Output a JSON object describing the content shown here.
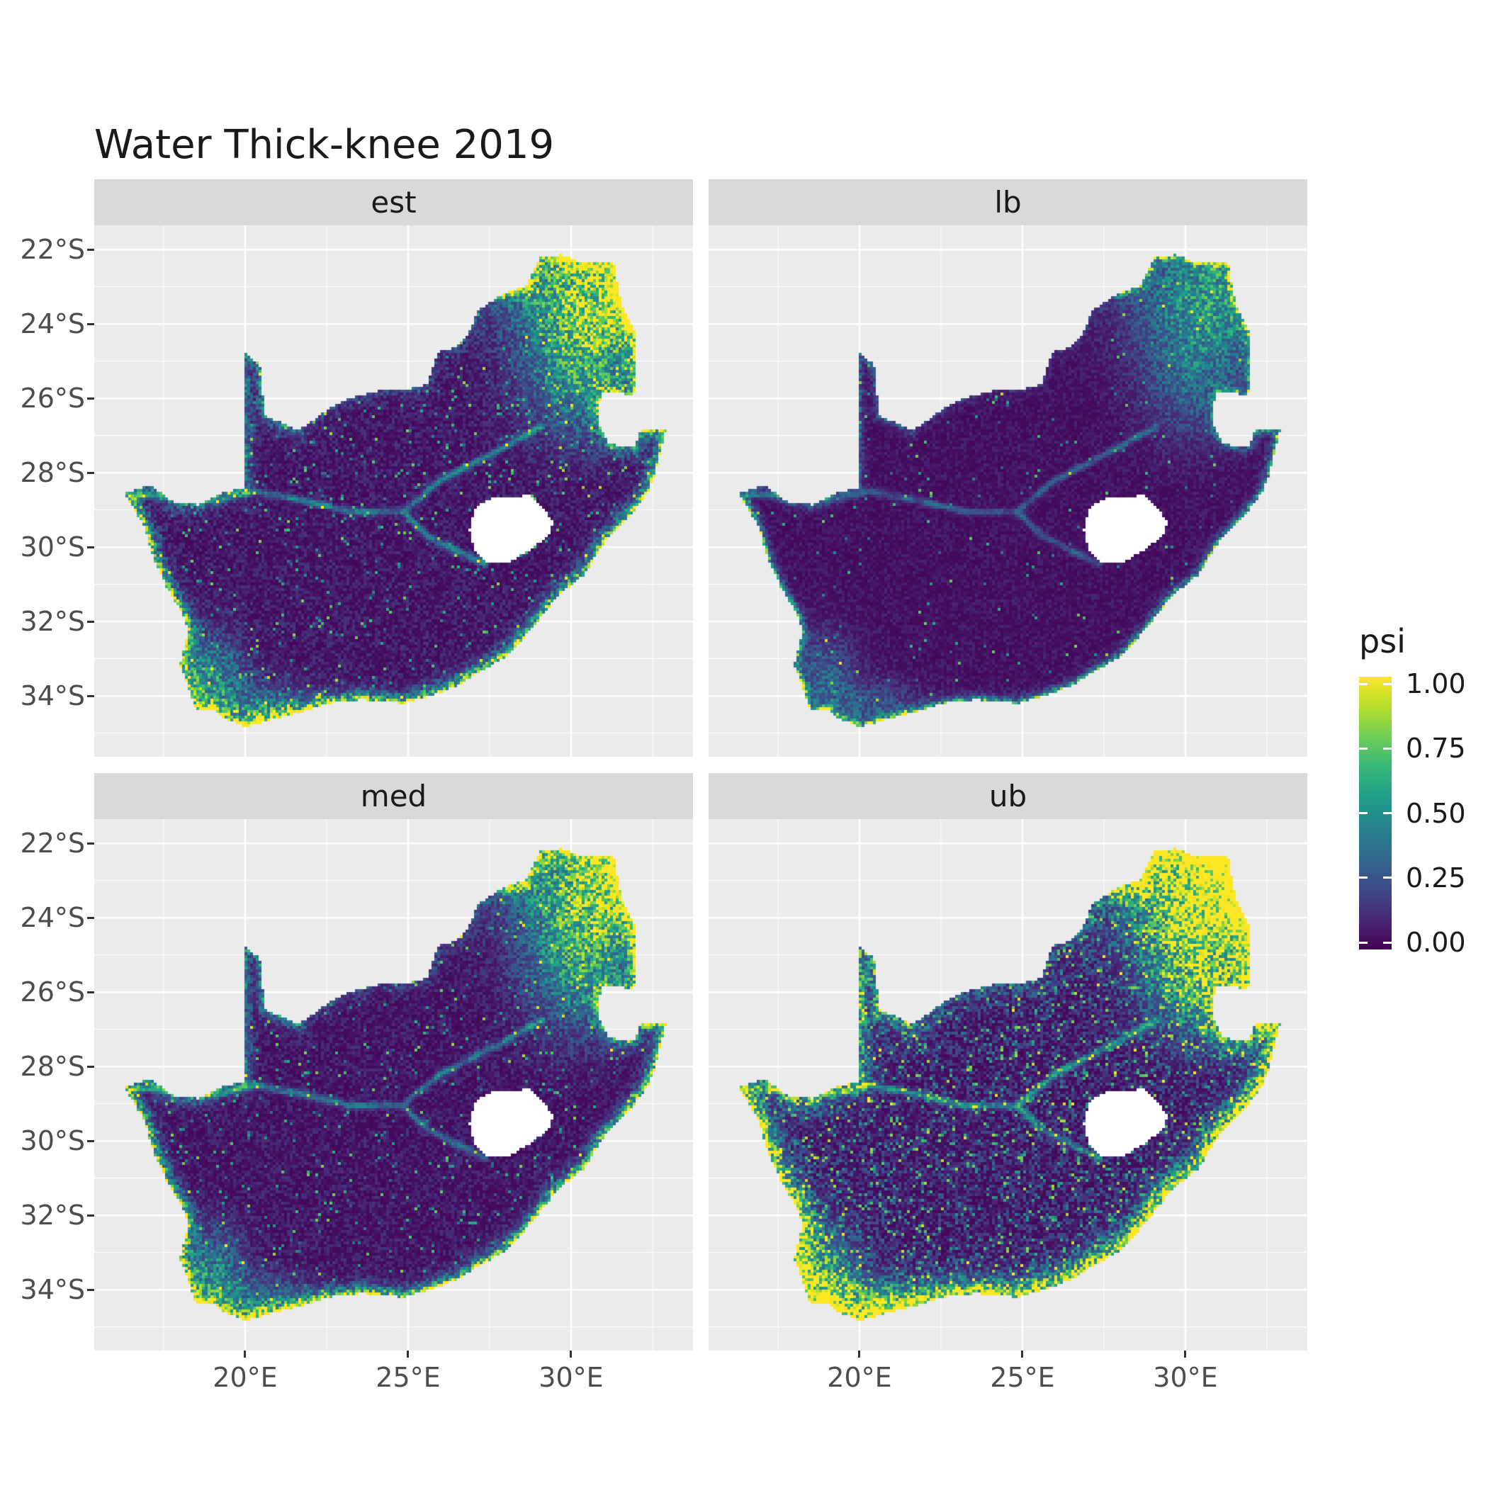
{
  "title": "Water Thick-knee 2019",
  "facets": [
    {
      "label": "est"
    },
    {
      "label": "lb"
    },
    {
      "label": "med"
    },
    {
      "label": "ub"
    }
  ],
  "axes": {
    "y_ticks": [
      "22°S",
      "24°S",
      "26°S",
      "28°S",
      "30°S",
      "32°S",
      "34°S"
    ],
    "x_ticks": [
      "20°E",
      "25°E",
      "30°E"
    ]
  },
  "legend": {
    "title": "psi",
    "ticks": [
      "1.00",
      "0.75",
      "0.50",
      "0.25",
      "0.00"
    ]
  },
  "colors": {
    "viridis_stops": [
      "#440154",
      "#482878",
      "#3e4a89",
      "#31688e",
      "#26828e",
      "#1f9e89",
      "#35b779",
      "#6ece58",
      "#b5de2b",
      "#fde725"
    ],
    "panel_bg": "#EBEBEB",
    "strip_bg": "#D9D9D9",
    "grid": "#FFFFFF",
    "axis_text": "#4D4D4D",
    "na_fill": "#FFFFFF"
  },
  "chart_data": {
    "type": "heatmap",
    "title": "Water Thick-knee 2019",
    "variable": "psi",
    "value_range": [
      0,
      1
    ],
    "colormap": "viridis",
    "region": "South Africa (Lesotho shown as no-data hole)",
    "facets": [
      "est",
      "lb",
      "med",
      "ub"
    ],
    "facet_layout": [
      [
        "est",
        "lb"
      ],
      [
        "med",
        "ub"
      ]
    ],
    "x_axis": {
      "ticks": [
        "20°E",
        "25°E",
        "30°E"
      ],
      "range_deg_east": [
        15.4,
        33.7
      ]
    },
    "y_axis": {
      "ticks": [
        "22°S",
        "24°S",
        "26°S",
        "28°S",
        "30°S",
        "32°S",
        "34°S"
      ],
      "range_deg_south": [
        21.4,
        35.6
      ]
    },
    "legend_breaks": [
      1.0,
      0.75,
      0.5,
      0.25,
      0.0
    ],
    "pattern_summary": {
      "est": "Occupancy estimate: high psi (yellow/green) along all coasts and the northeastern Limpopo/Kruger corner; very low psi (dark purple) across the interior; teal river corridors visible.",
      "lb": "Lower bound: mostly near-zero psi; bright values restricted to southwestern Cape coast, thin coastal fringe and a reduced northeastern patch.",
      "med": "Median: similar pattern to the estimate — bright coastal fringe, yellow northeast, dark interior.",
      "ub": "Upper bound: broad high-psi bands along east, south and west coasts, large yellow northeast region, more green speckle in the interior."
    },
    "geometry": {
      "outline": [
        [
          16.3,
          28.55,
          1
        ],
        [
          17.1,
          28.33,
          1
        ],
        [
          17.75,
          28.77,
          1
        ],
        [
          18.6,
          28.87,
          1
        ],
        [
          19.3,
          28.52,
          1
        ],
        [
          19.98,
          28.42,
          1
        ],
        [
          19.98,
          24.77,
          1
        ],
        [
          20.45,
          25.1,
          1
        ],
        [
          20.61,
          26.47,
          1
        ],
        [
          21.65,
          26.86,
          0
        ],
        [
          22.7,
          26.2,
          0
        ],
        [
          23.26,
          25.99,
          0
        ],
        [
          24.2,
          25.77,
          0
        ],
        [
          25.0,
          25.77,
          0
        ],
        [
          25.6,
          25.61,
          0
        ],
        [
          25.91,
          24.75,
          0
        ],
        [
          26.45,
          24.63,
          0
        ],
        [
          26.85,
          24.25,
          0
        ],
        [
          27.15,
          23.65,
          0
        ],
        [
          27.95,
          23.18,
          2
        ],
        [
          28.6,
          22.99,
          2
        ],
        [
          29.05,
          22.22,
          2
        ],
        [
          29.7,
          22.14,
          2
        ],
        [
          30.3,
          22.34,
          2
        ],
        [
          31.3,
          22.33,
          2
        ],
        [
          31.56,
          23.5,
          2
        ],
        [
          31.99,
          24.3,
          2
        ],
        [
          32.02,
          25.65,
          2
        ],
        [
          31.9,
          25.92,
          1
        ],
        [
          31.0,
          25.8,
          1
        ],
        [
          30.8,
          26.3,
          1
        ],
        [
          30.9,
          26.8,
          1
        ],
        [
          31.15,
          27.2,
          1
        ],
        [
          31.6,
          27.32,
          1
        ],
        [
          31.97,
          27.32,
          1
        ],
        [
          32.13,
          26.85,
          2
        ],
        [
          32.9,
          26.87,
          3
        ],
        [
          32.55,
          28.1,
          3
        ],
        [
          32.4,
          28.45,
          3
        ],
        [
          32.05,
          28.9,
          3
        ],
        [
          31.4,
          29.55,
          3
        ],
        [
          31.0,
          29.9,
          3
        ],
        [
          30.4,
          30.75,
          3
        ],
        [
          29.55,
          31.35,
          3
        ],
        [
          28.8,
          32.2,
          3
        ],
        [
          28.0,
          32.95,
          3
        ],
        [
          27.4,
          33.25,
          3
        ],
        [
          26.45,
          33.75,
          3
        ],
        [
          25.65,
          34.0,
          3
        ],
        [
          24.85,
          34.2,
          3
        ],
        [
          23.6,
          34.1,
          3
        ],
        [
          22.55,
          34.2,
          3
        ],
        [
          21.9,
          34.4,
          3
        ],
        [
          20.55,
          34.7,
          3
        ],
        [
          20.0,
          34.83,
          3
        ],
        [
          19.35,
          34.6,
          3
        ],
        [
          19.0,
          34.35,
          3
        ],
        [
          18.47,
          34.35,
          3
        ],
        [
          18.33,
          33.95,
          3
        ],
        [
          18.0,
          33.15,
          3
        ],
        [
          18.25,
          32.3,
          3
        ],
        [
          18.1,
          31.8,
          3
        ],
        [
          17.6,
          31.1,
          3
        ],
        [
          17.2,
          30.3,
          3
        ],
        [
          16.88,
          29.4,
          3
        ]
      ],
      "lesotho": [
        [
          27.05,
          28.95
        ],
        [
          27.6,
          28.65
        ],
        [
          28.2,
          28.68
        ],
        [
          28.7,
          28.58
        ],
        [
          29.15,
          28.95
        ],
        [
          29.45,
          29.35
        ],
        [
          29.3,
          29.7
        ],
        [
          28.85,
          30.0
        ],
        [
          28.15,
          30.4
        ],
        [
          27.45,
          30.42
        ],
        [
          27.05,
          30.1
        ],
        [
          26.88,
          29.55
        ]
      ],
      "rivers": [
        [
          [
            24.85,
            29.05
          ],
          [
            23.2,
            29.05
          ],
          [
            21.8,
            28.75
          ],
          [
            20.3,
            28.5
          ],
          [
            19.2,
            28.75
          ],
          [
            17.8,
            28.6
          ],
          [
            16.55,
            28.62
          ]
        ],
        [
          [
            29.1,
            26.75
          ],
          [
            28.1,
            27.25
          ],
          [
            27.0,
            27.75
          ],
          [
            26.0,
            28.2
          ],
          [
            25.3,
            28.7
          ],
          [
            24.85,
            29.05
          ]
        ],
        [
          [
            27.35,
            30.45
          ],
          [
            26.5,
            30.1
          ],
          [
            25.6,
            29.7
          ],
          [
            24.85,
            29.05
          ]
        ]
      ],
      "hotspots": [
        [
          30.9,
          23.2,
          2.4,
          1.9,
          1.0
        ],
        [
          30.2,
          25.6,
          1.5,
          1.6,
          0.45
        ],
        [
          18.9,
          33.6,
          1.0,
          1.2,
          0.55
        ],
        [
          20.6,
          34.4,
          1.4,
          0.7,
          0.45
        ]
      ]
    },
    "facet_params": {
      "est": {
        "edge_width": 0.2,
        "edge_gain": 0.95,
        "blob_gain": 0.95,
        "noise": 0.3,
        "speckle": 0.035,
        "river": 0.5,
        "seed": 1
      },
      "lb": {
        "edge_width": 0.12,
        "edge_gain": 0.7,
        "blob_gain": 0.6,
        "noise": 0.18,
        "speckle": 0.012,
        "river": 0.35,
        "seed": 2
      },
      "med": {
        "edge_width": 0.19,
        "edge_gain": 0.95,
        "blob_gain": 0.9,
        "noise": 0.28,
        "speckle": 0.03,
        "river": 0.5,
        "seed": 3
      },
      "ub": {
        "edge_width": 0.34,
        "edge_gain": 1.15,
        "blob_gain": 1.15,
        "noise": 0.5,
        "speckle": 0.1,
        "river": 0.6,
        "seed": 4
      }
    }
  }
}
